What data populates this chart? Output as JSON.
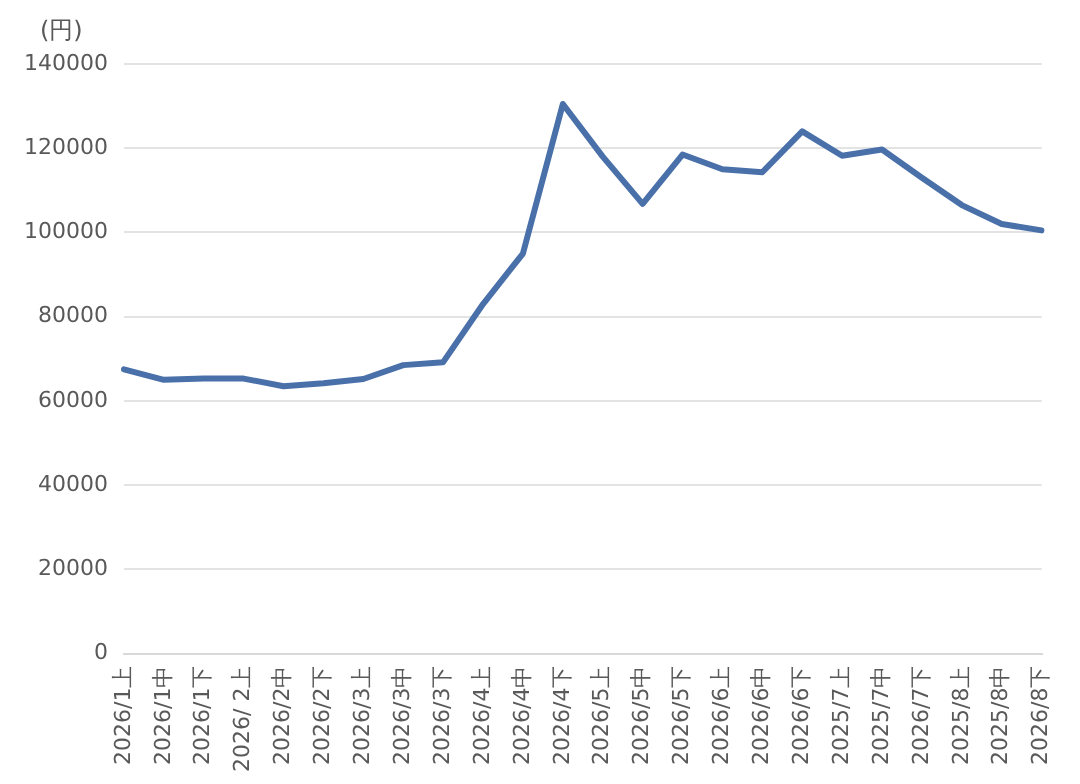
{
  "chart_data": {
    "type": "line",
    "ylabel": "(円)",
    "categories": [
      "2026/1上",
      "2026/1中",
      "2026/1下",
      "2026/ 2上",
      "2026/2中",
      "2026/2下",
      "2026/3上",
      "2026/3中",
      "2026/3下",
      "2026/4上",
      "2026/4中",
      "2026/4下",
      "2026/5上",
      "2026/5中",
      "2026/5下",
      "2026/6上",
      "2026/6中",
      "2026/6下",
      "2025/7上",
      "2025/7中",
      "2026/7下",
      "2025/8上",
      "2025/8中",
      "2026/8下"
    ],
    "series": [
      {
        "color": "#4a70aa",
        "values": [
          67500,
          65000,
          65300,
          65300,
          63500,
          64200,
          65200,
          68500,
          69200,
          83000,
          95000,
          130500,
          118000,
          106800,
          118500,
          115000,
          114300,
          124000,
          118200,
          119700,
          113000,
          106500,
          102000,
          100500
        ]
      }
    ],
    "ylim": [
      0,
      140000
    ],
    "yticks": [
      0,
      20000,
      40000,
      60000,
      80000,
      100000,
      120000,
      140000
    ],
    "grid": "y",
    "legend": false,
    "marker": "none",
    "line_style": "solid"
  }
}
